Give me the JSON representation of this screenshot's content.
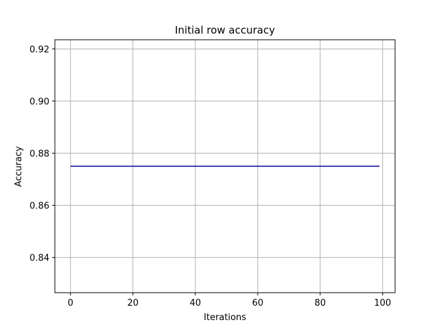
{
  "chart_data": {
    "type": "line",
    "title": "Initial row accuracy",
    "xlabel": "Iterations",
    "ylabel": "Accuracy",
    "xlim": [
      -5,
      104
    ],
    "ylim": [
      0.8265,
      0.9235
    ],
    "xticks": [
      0,
      20,
      40,
      60,
      80,
      100
    ],
    "yticks": [
      0.84,
      0.86,
      0.88,
      0.9,
      0.92
    ],
    "xtick_labels": [
      "0",
      "20",
      "40",
      "60",
      "80",
      "100"
    ],
    "ytick_labels": [
      "0.84",
      "0.86",
      "0.88",
      "0.90",
      "0.92"
    ],
    "grid": true,
    "series": [
      {
        "color": "#0000aa",
        "x": [
          0,
          99
        ],
        "y": [
          0.875,
          0.875
        ]
      }
    ]
  }
}
